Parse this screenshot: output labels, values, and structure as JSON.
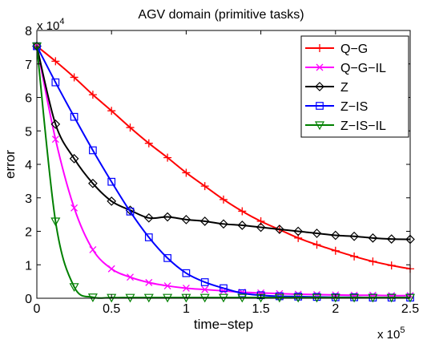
{
  "chart_data": {
    "type": "line",
    "title": "AGV domain (primitive tasks)",
    "xlabel": "time−step",
    "ylabel": "error",
    "x_multiplier": "x 10",
    "x_multiplier_exp": "5",
    "y_multiplier": "x 10",
    "y_multiplier_exp": "4",
    "xlim": [
      0,
      250000
    ],
    "ylim": [
      0,
      80000
    ],
    "x_ticks": [
      0,
      50000,
      100000,
      150000,
      200000,
      250000
    ],
    "x_tick_labels": [
      "0",
      "0.5",
      "1",
      "1.5",
      "2",
      "2.5"
    ],
    "y_ticks": [
      0,
      10000,
      20000,
      30000,
      40000,
      50000,
      60000,
      70000,
      80000
    ],
    "y_tick_labels": [
      "0",
      "1",
      "2",
      "3",
      "4",
      "5",
      "6",
      "7",
      "8"
    ],
    "grid": false,
    "legend_position": "top-right",
    "series": [
      {
        "name": "Q−G",
        "color": "#ff0000",
        "marker": "plus",
        "x": [
          0,
          12500,
          25000,
          37500,
          50000,
          62500,
          75000,
          87500,
          100000,
          112500,
          125000,
          137500,
          150000,
          162500,
          175000,
          187500,
          200000,
          212500,
          225000,
          237500,
          250000
        ],
        "y": [
          75300,
          70800,
          66000,
          60800,
          56000,
          51000,
          46300,
          42000,
          37500,
          33500,
          29500,
          26000,
          23000,
          20500,
          18000,
          16000,
          14200,
          12500,
          11000,
          9800,
          8800
        ]
      },
      {
        "name": "Q−G−IL",
        "color": "#ff00ff",
        "marker": "x",
        "x": [
          0,
          12500,
          25000,
          37500,
          50000,
          62500,
          75000,
          87500,
          100000,
          112500,
          125000,
          137500,
          150000,
          162500,
          175000,
          187500,
          200000,
          212500,
          225000,
          237500,
          250000
        ],
        "y": [
          75300,
          47500,
          27000,
          14500,
          8800,
          6300,
          4700,
          3700,
          3000,
          2600,
          2200,
          1800,
          1600,
          1400,
          1200,
          1100,
          1000,
          900,
          900,
          800,
          800
        ]
      },
      {
        "name": "Z",
        "color": "#000000",
        "marker": "diamond",
        "x": [
          0,
          12500,
          25000,
          37500,
          50000,
          62500,
          75000,
          87500,
          100000,
          112500,
          125000,
          137500,
          150000,
          162500,
          175000,
          187500,
          200000,
          212500,
          225000,
          237500,
          250000
        ],
        "y": [
          75300,
          52000,
          41700,
          34300,
          29000,
          26300,
          24000,
          24300,
          23500,
          23000,
          22200,
          21800,
          21200,
          20600,
          20000,
          19400,
          18800,
          18500,
          18000,
          17700,
          17600
        ]
      },
      {
        "name": "Z−IS",
        "color": "#0000ff",
        "marker": "square",
        "x": [
          0,
          12500,
          25000,
          37500,
          50000,
          62500,
          75000,
          87500,
          100000,
          112500,
          125000,
          137500,
          150000,
          162500,
          175000,
          187500,
          200000,
          212500,
          225000,
          237500,
          250000
        ],
        "y": [
          75300,
          64500,
          54200,
          44200,
          34800,
          25900,
          18200,
          12000,
          7500,
          4800,
          3000,
          1500,
          900,
          600,
          500,
          400,
          300,
          300,
          200,
          200,
          200
        ]
      },
      {
        "name": "Z−IS−IL",
        "color": "#008000",
        "marker": "triangle-down",
        "x": [
          0,
          12500,
          25000,
          37500,
          50000,
          62500,
          75000,
          87500,
          100000,
          112500,
          125000,
          137500,
          150000,
          162500,
          175000,
          187500,
          200000,
          212500,
          225000,
          237500,
          250000
        ],
        "y": [
          75300,
          23000,
          3400,
          300,
          200,
          200,
          200,
          200,
          200,
          200,
          200,
          200,
          200,
          200,
          200,
          200,
          200,
          200,
          200,
          200,
          200
        ]
      }
    ]
  }
}
